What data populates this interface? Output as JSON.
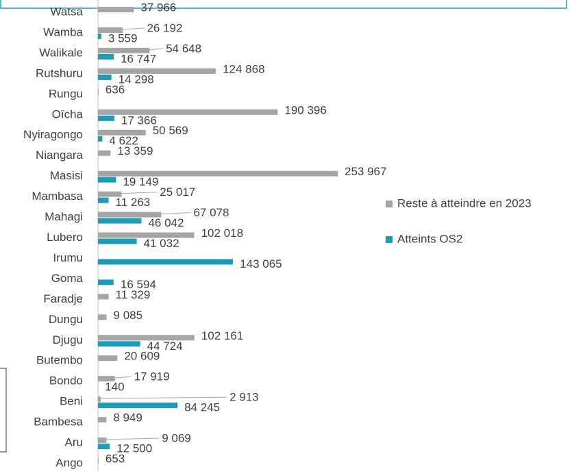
{
  "chart_data": {
    "type": "bar",
    "orientation": "horizontal",
    "categories": [
      "Watsa",
      "Wamba",
      "Walikale",
      "Rutshuru",
      "Rungu",
      "Oïcha",
      "Nyiragongo",
      "Niangara",
      "Masisi",
      "Mambasa",
      "Mahagi",
      "Lubero",
      "Irumu",
      "Goma",
      "Faradje",
      "Dungu",
      "Djugu",
      "Butembo",
      "Bondo",
      "Beni",
      "Bambesa",
      "Aru",
      "Ango"
    ],
    "series": [
      {
        "name": "Reste à atteindre en 2023",
        "color": "#a5a5a5",
        "values": [
          37966,
          26192,
          54648,
          124868,
          636,
          190396,
          50569,
          13359,
          253967,
          25017,
          67078,
          102018,
          null,
          null,
          11329,
          9085,
          102161,
          20609,
          17919,
          2913,
          8949,
          9069,
          653
        ],
        "value_labels": [
          "37 966",
          "26 192",
          "54 648",
          "124 868",
          "636",
          "190 396",
          "50 569",
          "13 359",
          "253 967",
          "25 017",
          "67 078",
          "102 018",
          null,
          null,
          "11 329",
          "9 085",
          "102 161",
          "20 609",
          "17 919",
          "2 913",
          "8 949",
          "9 069",
          "653"
        ]
      },
      {
        "name": "Atteints OS2",
        "color": "#1e9bb5",
        "values": [
          null,
          3559,
          16747,
          14298,
          null,
          17366,
          4622,
          null,
          19149,
          11263,
          46042,
          41032,
          143065,
          16594,
          null,
          null,
          44724,
          null,
          140,
          84245,
          null,
          12500,
          null
        ],
        "value_labels": [
          null,
          "3 559",
          "16 747",
          "14 298",
          null,
          "17 366",
          "4 622",
          null,
          "19 149",
          "11 263",
          "46 042",
          "41 032",
          "143 065",
          "16 594",
          null,
          null,
          "44 724",
          null,
          "140",
          "84 245",
          null,
          "12 500",
          null
        ]
      }
    ]
  }
}
